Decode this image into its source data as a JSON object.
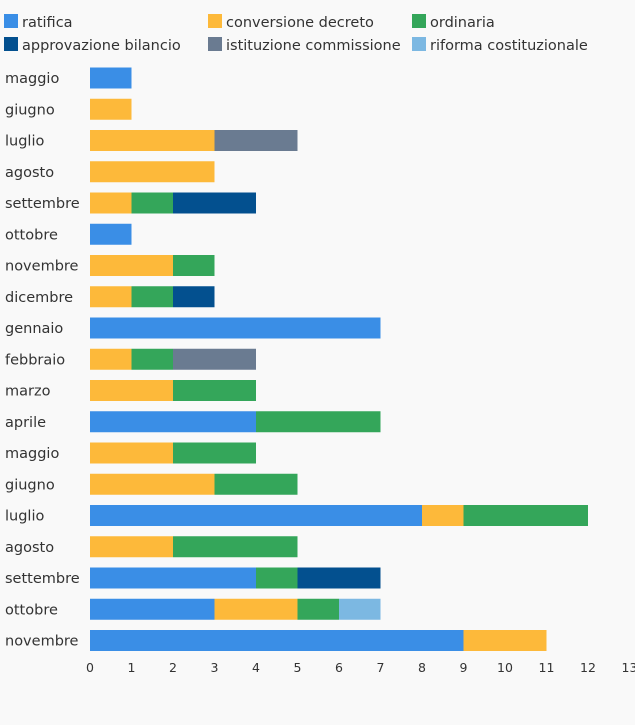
{
  "chart_data": {
    "type": "bar",
    "orientation": "horizontal",
    "stacked": true,
    "title": "",
    "xlabel": "",
    "ylabel": "",
    "xlim": [
      0,
      13
    ],
    "x_ticks": [
      "0",
      "1",
      "2",
      "3",
      "4",
      "5",
      "6",
      "7",
      "8",
      "9",
      "10",
      "11",
      "12",
      "13"
    ],
    "grid": false,
    "legend_position": "top",
    "categories": [
      "maggio",
      "giugno",
      "luglio",
      "agosto",
      "settembre",
      "ottobre",
      "novembre",
      "dicembre",
      "gennaio",
      "febbraio",
      "marzo",
      "aprile",
      "maggio",
      "giugno",
      "luglio",
      "agosto",
      "settembre",
      "ottobre",
      "novembre"
    ],
    "series": [
      {
        "name": "ratifica",
        "color": "#3a8ee6",
        "values": [
          1,
          0,
          0,
          0,
          0,
          1,
          0,
          0,
          7,
          0,
          0,
          4,
          0,
          0,
          8,
          0,
          4,
          3,
          9
        ]
      },
      {
        "name": "conversione decreto",
        "color": "#fdb93a",
        "values": [
          0,
          1,
          3,
          3,
          1,
          0,
          2,
          1,
          0,
          1,
          2,
          0,
          2,
          3,
          1,
          2,
          0,
          2,
          2
        ]
      },
      {
        "name": "ordinaria",
        "color": "#34a65a",
        "values": [
          0,
          0,
          0,
          0,
          1,
          0,
          1,
          1,
          0,
          1,
          2,
          3,
          2,
          2,
          3,
          3,
          1,
          1,
          0
        ]
      },
      {
        "name": "approvazione bilancio",
        "color": "#03508f",
        "values": [
          0,
          0,
          0,
          0,
          2,
          0,
          0,
          1,
          0,
          0,
          0,
          0,
          0,
          0,
          0,
          0,
          2,
          0,
          0
        ]
      },
      {
        "name": "istituzione commissione",
        "color": "#6a7b91",
        "values": [
          0,
          0,
          2,
          0,
          0,
          0,
          0,
          0,
          0,
          2,
          0,
          0,
          0,
          0,
          0,
          0,
          0,
          0,
          0
        ]
      },
      {
        "name": "riforma costituzionale",
        "color": "#7cb8e2",
        "values": [
          0,
          0,
          0,
          0,
          0,
          0,
          0,
          0,
          0,
          0,
          0,
          0,
          0,
          0,
          0,
          0,
          0,
          1,
          0
        ]
      }
    ]
  }
}
